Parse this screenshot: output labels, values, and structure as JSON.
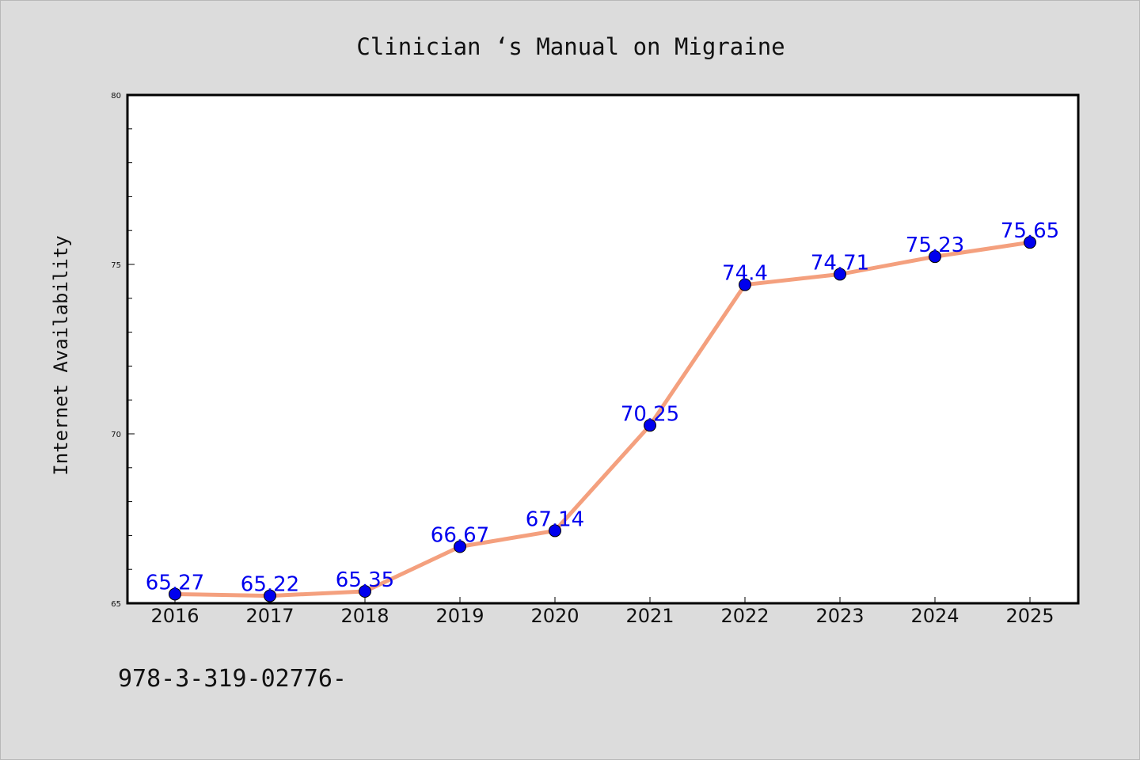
{
  "chart_data": {
    "type": "line",
    "title": "Clinician ‘s Manual on Migraine",
    "ylabel": "Internet Availability",
    "xlabel": "",
    "categories": [
      "2016",
      "2017",
      "2018",
      "2019",
      "2020",
      "2021",
      "2022",
      "2023",
      "2024",
      "2025"
    ],
    "series": [
      {
        "values": [
          65.27,
          65.22,
          65.35,
          66.67,
          67.14,
          70.25,
          74.4,
          74.71,
          75.23,
          75.65
        ],
        "data_labels": [
          "65.27",
          "65.22",
          "65.35",
          "66.67",
          "67.14",
          "70.25",
          "74.4",
          "74.71",
          "75.23",
          "75.65"
        ]
      }
    ],
    "ylim": [
      65,
      80
    ],
    "yticks": [
      65,
      70,
      75,
      80
    ],
    "ytick_labels": [
      "65",
      "70",
      "75",
      "80"
    ],
    "grid": false,
    "line_color": "#f4a07e",
    "marker_color": "#0000ee",
    "label_color": "#0000ee"
  },
  "footer_text": "978-3-319-02776-"
}
